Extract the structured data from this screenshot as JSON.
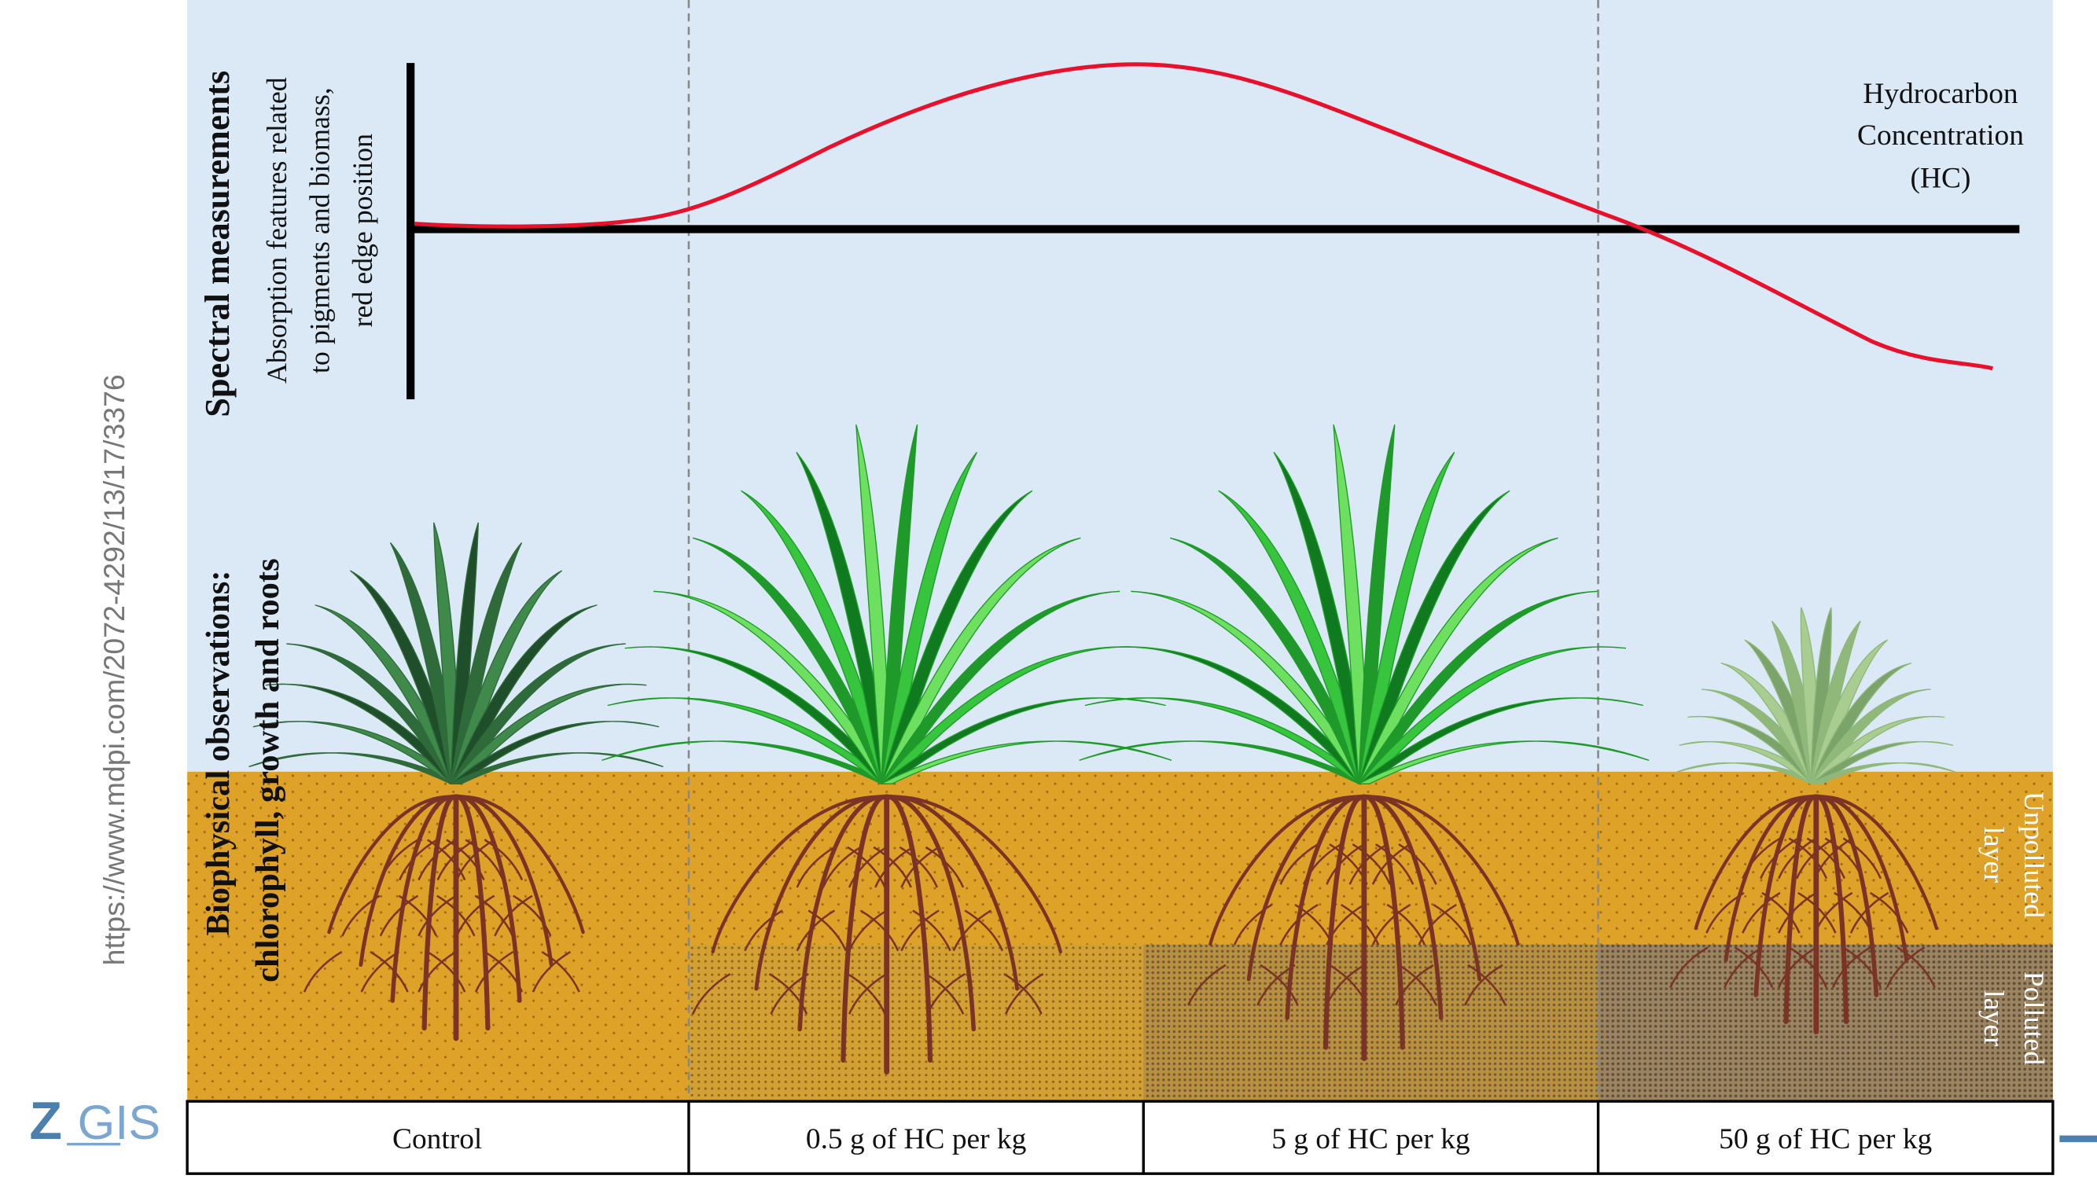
{
  "source_url": "https://www.mdpi.com/2072-4292/13/17/3376",
  "logo": {
    "z": "Z",
    "gis": "GIS"
  },
  "spectral": {
    "title": "Spectral measurements",
    "lines": [
      "Absorption features related",
      "to pigments and biomass,",
      "red edge position"
    ]
  },
  "biophysical": {
    "lines": [
      "Biophysical observations:",
      "chlorophyll, growth and roots"
    ]
  },
  "axis_label": [
    "Hydrocarbon",
    "Concentration",
    "(HC)"
  ],
  "layers": {
    "unpolluted": [
      "Unpolluted",
      "layer"
    ],
    "polluted": [
      "Polluted",
      "layer"
    ]
  },
  "columns": [
    "Control",
    "0.5 g of HC per kg",
    "5 g of HC per kg",
    "50 g of HC per kg"
  ]
}
